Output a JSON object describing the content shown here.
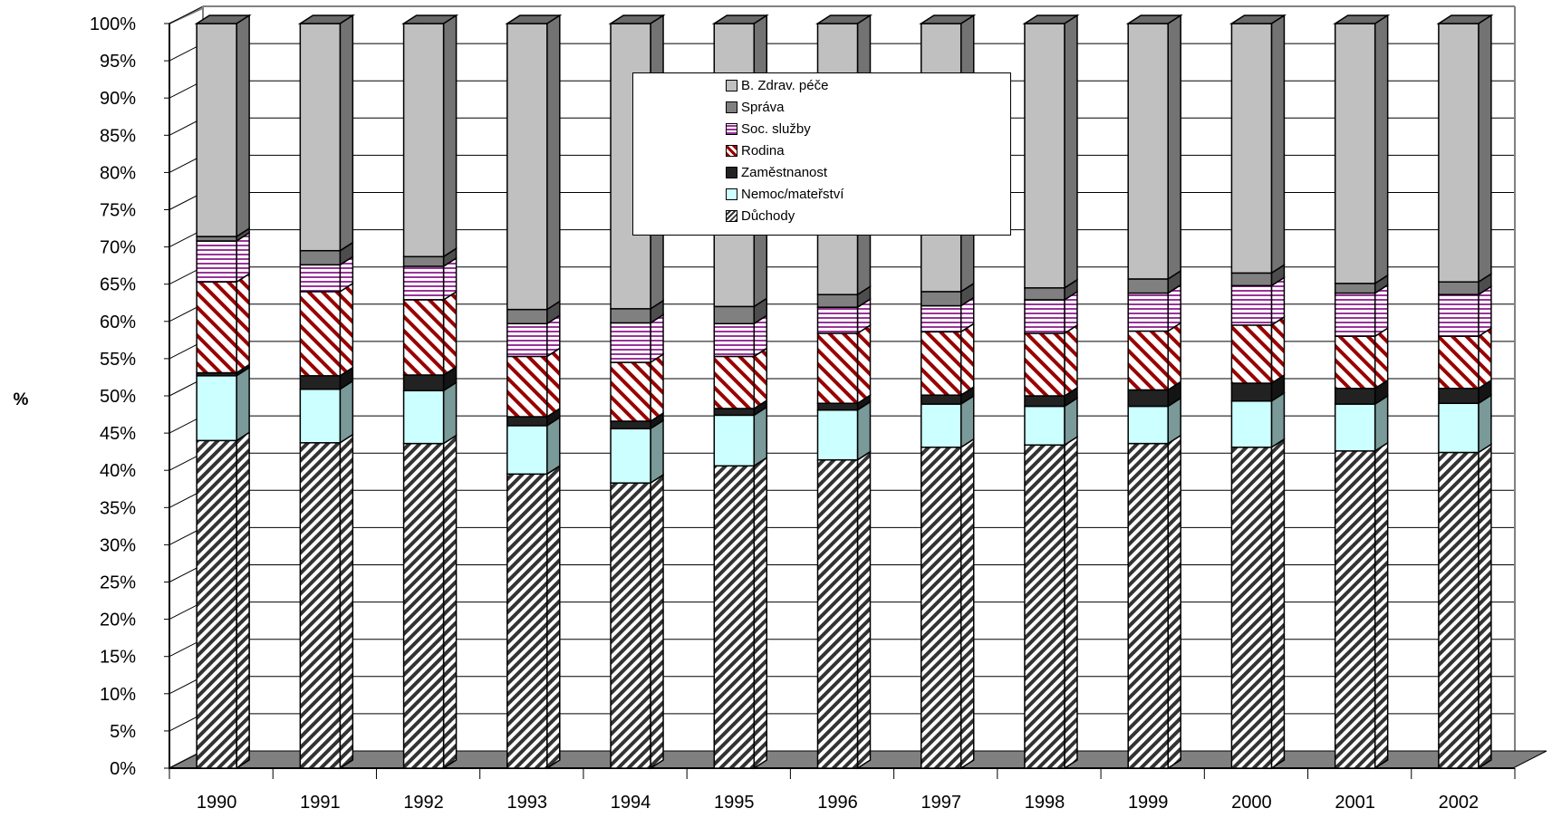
{
  "chart_data": {
    "type": "bar",
    "stacked": true,
    "percent": true,
    "three_d": true,
    "categories": [
      "1990",
      "1991",
      "1992",
      "1993",
      "1994",
      "1995",
      "1996",
      "1997",
      "1998",
      "1999",
      "2000",
      "2001",
      "2002"
    ],
    "ylabel": "%",
    "ylim": [
      0,
      100
    ],
    "y_ticks": [
      "0%",
      "5%",
      "10%",
      "15%",
      "20%",
      "25%",
      "30%",
      "35%",
      "40%",
      "45%",
      "50%",
      "55%",
      "60%",
      "65%",
      "70%",
      "75%",
      "80%",
      "85%",
      "90%",
      "95%",
      "100%"
    ],
    "grid": true,
    "legend_position": "top-center",
    "series": [
      {
        "name": "Důchody",
        "color": "#ffffff",
        "pattern": "diagonal-stripes-dark",
        "values": [
          44,
          43.7,
          43.6,
          39.5,
          38.3,
          40.6,
          41.4,
          43.1,
          43.4,
          43.6,
          43.1,
          42.6,
          42.4
        ]
      },
      {
        "name": "Nemoc/mateřství",
        "color": "#ccffff",
        "pattern": "solid",
        "values": [
          8.7,
          7.2,
          7.1,
          6.5,
          7.3,
          6.8,
          6.7,
          5.8,
          5.2,
          5.0,
          6.2,
          6.3,
          6.6
        ]
      },
      {
        "name": "Zaměstnanost",
        "color": "#222222",
        "pattern": "solid",
        "values": [
          0.4,
          1.8,
          2.1,
          1.2,
          1.0,
          0.9,
          0.9,
          1.2,
          1.4,
          2.2,
          2.4,
          2.1,
          2.0
        ]
      },
      {
        "name": "Rodina",
        "color": "#ffffff",
        "pattern": "diagonal-stripes-red",
        "values": [
          12.2,
          11.3,
          10.1,
          8.1,
          7.9,
          7.0,
          9.4,
          8.5,
          8.4,
          7.9,
          7.8,
          7.0,
          7.0
        ]
      },
      {
        "name": "Soc. služby",
        "color": "#ffffff",
        "pattern": "horizontal-stripes-purple",
        "values": [
          5.5,
          3.6,
          4.5,
          4.4,
          5.3,
          4.4,
          3.5,
          3.5,
          4.5,
          5.1,
          5.3,
          5.8,
          5.6
        ]
      },
      {
        "name": "Správa",
        "color": "#808080",
        "pattern": "solid",
        "values": [
          0.6,
          1.9,
          1.3,
          1.9,
          1.9,
          2.3,
          1.7,
          1.9,
          1.6,
          1.9,
          1.7,
          1.3,
          1.7
        ]
      },
      {
        "name": "B. Zdrav. péče",
        "color": "#c0c0c0",
        "pattern": "solid",
        "values": [
          28.6,
          30.5,
          31.3,
          38.4,
          38.3,
          38.0,
          36.4,
          36.0,
          35.5,
          34.3,
          33.5,
          34.9,
          34.7
        ]
      }
    ]
  },
  "legend": {
    "items_top_to_bottom": [
      "B. Zdrav. péče",
      "Správa",
      "Soc. služby",
      "Rodina",
      "Zaměstnanost",
      "Nemoc/mateřství",
      "Důchody"
    ]
  }
}
